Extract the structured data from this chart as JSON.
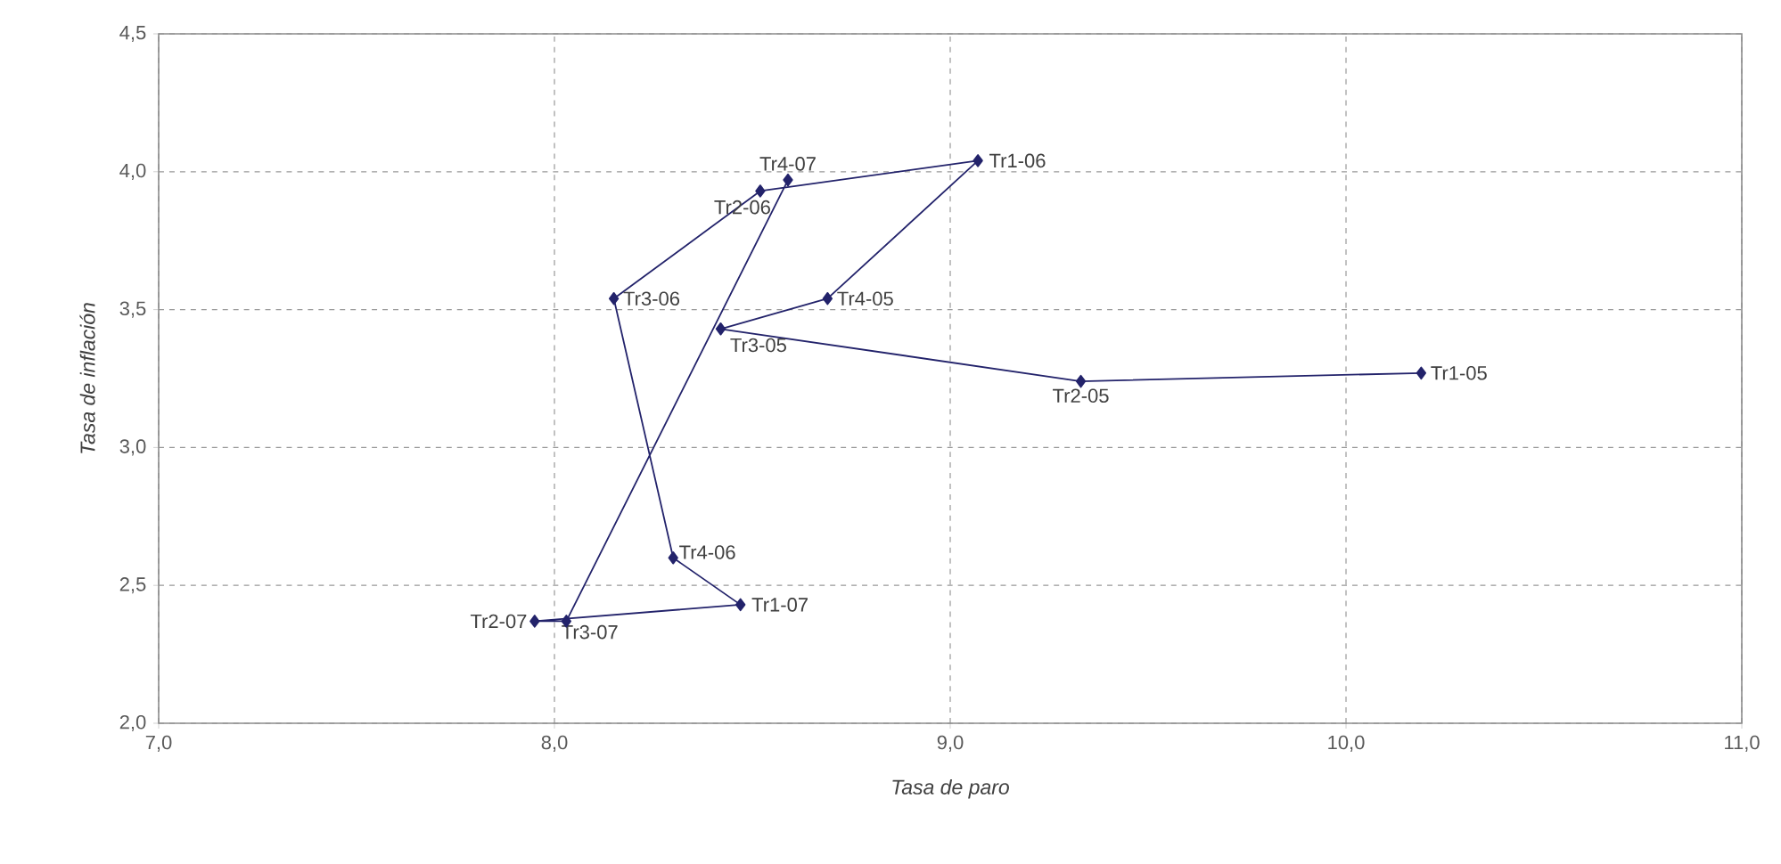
{
  "chart_data": {
    "type": "line",
    "xlabel": "Tasa de paro",
    "ylabel": "Tasa de inflación",
    "xlim": [
      7,
      11
    ],
    "ylim": [
      2,
      4.5
    ],
    "xticks": [
      {
        "value": 7,
        "label": "7,0"
      },
      {
        "value": 8,
        "label": "8,0"
      },
      {
        "value": 9,
        "label": "9,0"
      },
      {
        "value": 10,
        "label": "10,0"
      },
      {
        "value": 11,
        "label": "11,0"
      }
    ],
    "yticks": [
      {
        "value": 2,
        "label": "2,0"
      },
      {
        "value": 2.5,
        "label": "2,5"
      },
      {
        "value": 3,
        "label": "3,0"
      },
      {
        "value": 3.5,
        "label": "3,5"
      },
      {
        "value": 4,
        "label": "4,0"
      },
      {
        "value": 4.5,
        "label": "4,5"
      }
    ],
    "grid": true,
    "marker": "diamond",
    "line_style": "solid",
    "series": [
      {
        "color": "#23236b",
        "x": [
          10.19,
          9.33,
          8.42,
          8.69,
          9.07,
          8.52,
          8.15,
          8.3,
          8.47,
          7.95,
          8.03,
          8.59
        ],
        "values": [
          3.27,
          3.24,
          3.43,
          3.54,
          4.04,
          3.93,
          3.54,
          2.6,
          2.43,
          2.37,
          2.37,
          3.97
        ]
      }
    ],
    "annotations": [
      {
        "text": "Tr1-05",
        "x": 10.19,
        "y": 3.27
      },
      {
        "text": "Tr2-05",
        "x": 9.33,
        "y": 3.24
      },
      {
        "text": "Tr3-05",
        "x": 8.42,
        "y": 3.43
      },
      {
        "text": "Tr4-05",
        "x": 8.69,
        "y": 3.54
      },
      {
        "text": "Tr1-06",
        "x": 9.07,
        "y": 4.04
      },
      {
        "text": "Tr2-06",
        "x": 8.52,
        "y": 3.93
      },
      {
        "text": "Tr3-06",
        "x": 8.15,
        "y": 3.54
      },
      {
        "text": "Tr4-06",
        "x": 8.3,
        "y": 2.6
      },
      {
        "text": "Tr1-07",
        "x": 8.47,
        "y": 2.43
      },
      {
        "text": "Tr2-07",
        "x": 7.95,
        "y": 2.37
      },
      {
        "text": "Tr3-07",
        "x": 8.03,
        "y": 2.37
      },
      {
        "text": "Tr4-07",
        "x": 8.59,
        "y": 3.97
      }
    ]
  }
}
